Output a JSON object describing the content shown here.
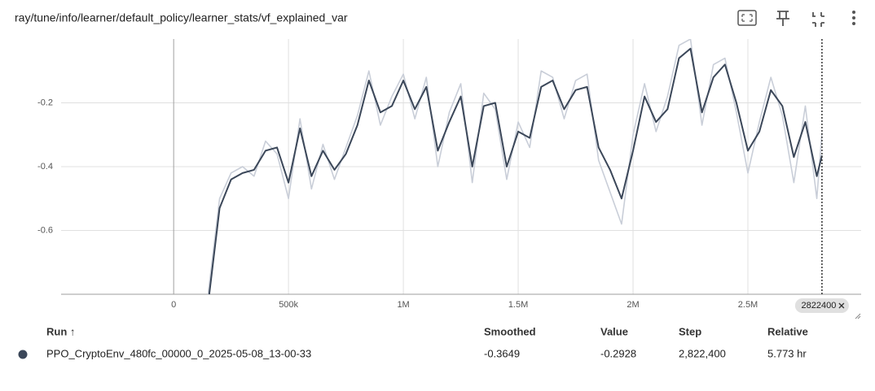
{
  "chart_data": {
    "type": "line",
    "title": "ray/tune/info/learner/default_policy/learner_stats/vf_explained_var",
    "x": [
      150000,
      200000,
      250000,
      300000,
      350000,
      400000,
      450000,
      500000,
      550000,
      600000,
      650000,
      700000,
      750000,
      800000,
      850000,
      900000,
      950000,
      1000000,
      1050000,
      1100000,
      1150000,
      1200000,
      1250000,
      1300000,
      1350000,
      1400000,
      1450000,
      1500000,
      1550000,
      1600000,
      1650000,
      1700000,
      1750000,
      1800000,
      1850000,
      1900000,
      1950000,
      2000000,
      2050000,
      2100000,
      2150000,
      2200000,
      2250000,
      2300000,
      2350000,
      2400000,
      2450000,
      2500000,
      2550000,
      2600000,
      2650000,
      2700000,
      2750000,
      2800000,
      2822400
    ],
    "series": [
      {
        "color": "#c9ced8",
        "values": [
          -0.8,
          -0.5,
          -0.42,
          -0.4,
          -0.43,
          -0.32,
          -0.36,
          -0.5,
          -0.25,
          -0.47,
          -0.33,
          -0.44,
          -0.34,
          -0.24,
          -0.1,
          -0.27,
          -0.18,
          -0.11,
          -0.25,
          -0.12,
          -0.4,
          -0.23,
          -0.14,
          -0.45,
          -0.17,
          -0.22,
          -0.44,
          -0.26,
          -0.34,
          -0.1,
          -0.12,
          -0.25,
          -0.13,
          -0.11,
          -0.38,
          -0.48,
          -0.58,
          -0.3,
          -0.14,
          -0.29,
          -0.18,
          -0.02,
          0.0,
          -0.27,
          -0.08,
          -0.06,
          -0.23,
          -0.42,
          -0.26,
          -0.12,
          -0.24,
          -0.45,
          -0.21,
          -0.5,
          -0.2928
        ]
      },
      {
        "color": "#3b4759",
        "values": [
          -0.83,
          -0.53,
          -0.44,
          -0.42,
          -0.41,
          -0.35,
          -0.34,
          -0.45,
          -0.28,
          -0.43,
          -0.35,
          -0.41,
          -0.36,
          -0.27,
          -0.13,
          -0.23,
          -0.21,
          -0.13,
          -0.22,
          -0.15,
          -0.35,
          -0.26,
          -0.18,
          -0.4,
          -0.21,
          -0.2,
          -0.4,
          -0.29,
          -0.31,
          -0.15,
          -0.13,
          -0.22,
          -0.16,
          -0.15,
          -0.34,
          -0.41,
          -0.5,
          -0.35,
          -0.18,
          -0.26,
          -0.22,
          -0.06,
          -0.03,
          -0.23,
          -0.12,
          -0.08,
          -0.2,
          -0.35,
          -0.29,
          -0.16,
          -0.21,
          -0.37,
          -0.26,
          -0.43,
          -0.3649
        ]
      }
    ],
    "xlim": [
      -490000,
      2993000
    ],
    "xticks": [
      0,
      {
        "value": 500000,
        "label": "500k"
      },
      {
        "value": 1000000,
        "label": "1M"
      },
      {
        "value": 1500000,
        "label": "1.5M"
      },
      {
        "value": 2000000,
        "label": "2M"
      },
      {
        "value": 2500000,
        "label": "2.5M"
      }
    ],
    "ylim": [
      -0.8,
      0
    ],
    "yticks": [
      -0.2,
      -0.4,
      -0.6
    ],
    "grid": true,
    "cursor": 2822400
  },
  "table": {
    "header": [
      "Run ↑",
      "Smoothed",
      "Value",
      "Step",
      "Relative"
    ],
    "rows": [
      [
        "PPO_CryptoEnv_480fc_00000_0_2025-05-08_13-00-33",
        "-0.3649",
        "-0.2928",
        "2,822,400",
        "5.773 hr"
      ]
    ]
  }
}
